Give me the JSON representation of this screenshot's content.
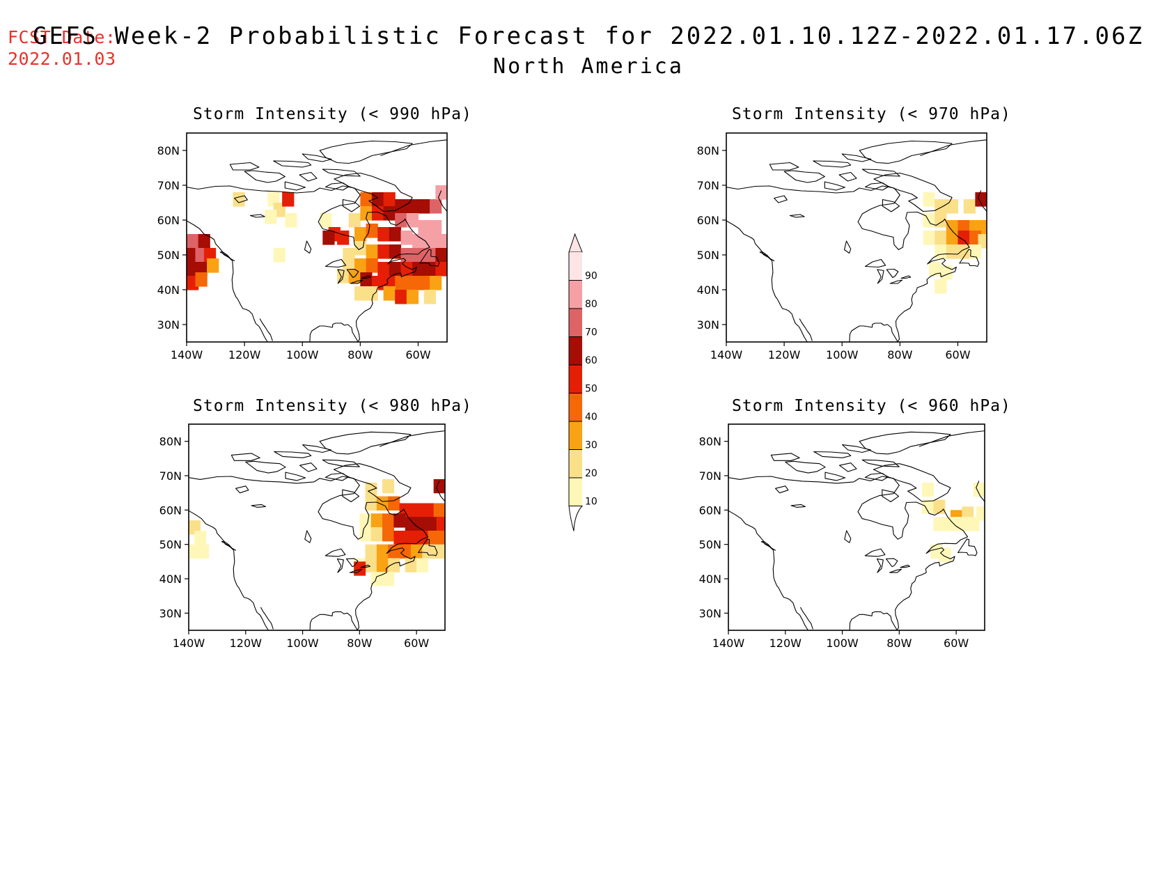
{
  "header": {
    "fcst_label": "FCST Date:",
    "fcst_date": "2022.01.03",
    "title": "GEFS Week-2 Probabilistic Forecast for 2022.01.10.12Z-2022.01.17.06Z",
    "subtitle": "North America"
  },
  "colors": {
    "fcst_text": "#e8312b",
    "scale": [
      "#fff7b8",
      "#fbe08a",
      "#f9a214",
      "#f66707",
      "#e51f05",
      "#a50d05",
      "#de6367",
      "#f5a0a5",
      "#fde5e6"
    ]
  },
  "colorbar": {
    "levels": [
      "10",
      "20",
      "30",
      "40",
      "50",
      "60",
      "70",
      "80",
      "90"
    ]
  },
  "axes": {
    "lon_ticks": [
      "140W",
      "120W",
      "100W",
      "80W",
      "60W"
    ],
    "lat_ticks": [
      "80N",
      "70N",
      "60N",
      "50N",
      "40N",
      "30N"
    ]
  },
  "panels": [
    {
      "id": "p990",
      "title": "Storm Intensity (< 990 hPa)",
      "threshold_hpa": 990
    },
    {
      "id": "p970",
      "title": "Storm Intensity (< 970 hPa)",
      "threshold_hpa": 970
    },
    {
      "id": "p980",
      "title": "Storm Intensity (< 980 hPa)",
      "threshold_hpa": 980
    },
    {
      "id": "p960",
      "title": "Storm Intensity (< 960 hPa)",
      "threshold_hpa": 960
    }
  ],
  "chart_data": {
    "type": "heatmap",
    "variable": "probability (%)",
    "x_range": [
      -140,
      -50
    ],
    "y_range": [
      25,
      85
    ],
    "levels": [
      10,
      20,
      30,
      40,
      50,
      60,
      70,
      80,
      90
    ],
    "panels": [
      {
        "id": "p990",
        "cells": [
          [
            -138,
            54,
            75
          ],
          [
            -136,
            54,
            70
          ],
          [
            -134,
            54,
            60
          ],
          [
            -138,
            50,
            65
          ],
          [
            -135,
            50,
            70
          ],
          [
            -132,
            50,
            55
          ],
          [
            -138,
            46,
            60
          ],
          [
            -135,
            46,
            65
          ],
          [
            -131,
            47,
            35
          ],
          [
            -138,
            42,
            50
          ],
          [
            -135,
            43,
            45
          ],
          [
            -122,
            66,
            20
          ],
          [
            -110,
            66,
            15
          ],
          [
            -108,
            63,
            25
          ],
          [
            -105,
            66,
            55
          ],
          [
            -111,
            61,
            15
          ],
          [
            -104,
            60,
            15
          ],
          [
            -108,
            50,
            15
          ],
          [
            -92,
            60,
            15
          ],
          [
            -89,
            56,
            55
          ],
          [
            -91,
            55,
            60
          ],
          [
            -86,
            55,
            55
          ],
          [
            -84,
            50,
            20
          ],
          [
            -82,
            60,
            25
          ],
          [
            -78,
            66,
            40
          ],
          [
            -74,
            66,
            60
          ],
          [
            -70,
            66,
            55
          ],
          [
            -66,
            64,
            60
          ],
          [
            -62,
            64,
            65
          ],
          [
            -58,
            64,
            65
          ],
          [
            -54,
            64,
            70
          ],
          [
            -52,
            68,
            80
          ],
          [
            -78,
            62,
            35
          ],
          [
            -74,
            62,
            55
          ],
          [
            -70,
            62,
            60
          ],
          [
            -66,
            60,
            70
          ],
          [
            -62,
            60,
            80
          ],
          [
            -58,
            58,
            85
          ],
          [
            -54,
            58,
            80
          ],
          [
            -80,
            56,
            30
          ],
          [
            -76,
            57,
            45
          ],
          [
            -72,
            56,
            50
          ],
          [
            -68,
            56,
            60
          ],
          [
            -64,
            55,
            80
          ],
          [
            -60,
            54,
            85
          ],
          [
            -56,
            54,
            85
          ],
          [
            -52,
            54,
            80
          ],
          [
            -80,
            52,
            25
          ],
          [
            -76,
            51,
            35
          ],
          [
            -72,
            51,
            55
          ],
          [
            -68,
            51,
            65
          ],
          [
            -64,
            50,
            75
          ],
          [
            -60,
            50,
            70
          ],
          [
            -56,
            50,
            70
          ],
          [
            -52,
            50,
            60
          ],
          [
            -84,
            48,
            20
          ],
          [
            -80,
            47,
            30
          ],
          [
            -76,
            47,
            40
          ],
          [
            -72,
            46,
            55
          ],
          [
            -68,
            46,
            60
          ],
          [
            -64,
            46,
            55
          ],
          [
            -60,
            46,
            60
          ],
          [
            -56,
            46,
            65
          ],
          [
            -52,
            46,
            55
          ],
          [
            -86,
            44,
            25
          ],
          [
            -82,
            44,
            35
          ],
          [
            -78,
            43,
            60
          ],
          [
            -74,
            42,
            55
          ],
          [
            -70,
            42,
            50
          ],
          [
            -66,
            42,
            45
          ],
          [
            -62,
            42,
            40
          ],
          [
            -58,
            42,
            40
          ],
          [
            -54,
            42,
            35
          ],
          [
            -80,
            39,
            20
          ],
          [
            -76,
            39,
            25
          ],
          [
            -70,
            39,
            35
          ],
          [
            -66,
            38,
            50
          ],
          [
            -62,
            38,
            35
          ],
          [
            -56,
            38,
            25
          ]
        ]
      },
      {
        "id": "p970",
        "cells": [
          [
            -70,
            66,
            15
          ],
          [
            -66,
            64,
            20
          ],
          [
            -62,
            64,
            20
          ],
          [
            -56,
            64,
            25
          ],
          [
            -52,
            66,
            60
          ],
          [
            -70,
            60,
            15
          ],
          [
            -66,
            60,
            25
          ],
          [
            -62,
            58,
            35
          ],
          [
            -58,
            58,
            45
          ],
          [
            -54,
            58,
            35
          ],
          [
            -51,
            58,
            30
          ],
          [
            -70,
            55,
            15
          ],
          [
            -66,
            55,
            25
          ],
          [
            -62,
            55,
            35
          ],
          [
            -58,
            55,
            50
          ],
          [
            -54,
            55,
            40
          ],
          [
            -51,
            54,
            25
          ],
          [
            -66,
            51,
            15
          ],
          [
            -62,
            51,
            20
          ],
          [
            -58,
            51,
            20
          ],
          [
            -54,
            51,
            15
          ],
          [
            -68,
            46,
            15
          ],
          [
            -64,
            45,
            15
          ],
          [
            -66,
            41,
            15
          ]
        ]
      },
      {
        "id": "p980",
        "cells": [
          [
            -138,
            55,
            20
          ],
          [
            -136,
            52,
            15
          ],
          [
            -138,
            48,
            15
          ],
          [
            -135,
            48,
            15
          ],
          [
            -76,
            66,
            25
          ],
          [
            -70,
            67,
            25
          ],
          [
            -52,
            67,
            65
          ],
          [
            -76,
            62,
            20
          ],
          [
            -72,
            62,
            35
          ],
          [
            -68,
            62,
            45
          ],
          [
            -64,
            60,
            50
          ],
          [
            -60,
            60,
            55
          ],
          [
            -56,
            60,
            50
          ],
          [
            -52,
            60,
            45
          ],
          [
            -78,
            57,
            15
          ],
          [
            -74,
            57,
            30
          ],
          [
            -70,
            57,
            45
          ],
          [
            -66,
            57,
            60
          ],
          [
            -62,
            56,
            65
          ],
          [
            -58,
            56,
            65
          ],
          [
            -54,
            56,
            60
          ],
          [
            -51,
            56,
            55
          ],
          [
            -78,
            53,
            15
          ],
          [
            -74,
            53,
            25
          ],
          [
            -70,
            53,
            40
          ],
          [
            -66,
            52,
            50
          ],
          [
            -62,
            52,
            55
          ],
          [
            -58,
            52,
            50
          ],
          [
            -54,
            52,
            45
          ],
          [
            -51,
            52,
            40
          ],
          [
            -76,
            48,
            20
          ],
          [
            -72,
            48,
            30
          ],
          [
            -68,
            48,
            40
          ],
          [
            -64,
            48,
            40
          ],
          [
            -60,
            48,
            35
          ],
          [
            -56,
            48,
            25
          ],
          [
            -52,
            48,
            20
          ],
          [
            -80,
            44,
            15
          ],
          [
            -76,
            44,
            25
          ],
          [
            -72,
            44,
            30
          ],
          [
            -68,
            44,
            25
          ],
          [
            -62,
            44,
            20
          ],
          [
            -58,
            44,
            15
          ],
          [
            -80,
            43,
            55
          ],
          [
            -74,
            40,
            15
          ],
          [
            -70,
            40,
            15
          ]
        ]
      },
      {
        "id": "p960",
        "cells": [
          [
            -70,
            66,
            15
          ],
          [
            -52,
            66,
            15
          ],
          [
            -70,
            61,
            15
          ],
          [
            -66,
            61,
            20
          ],
          [
            -60,
            58,
            35
          ],
          [
            -56,
            59,
            20
          ],
          [
            -51,
            59,
            15
          ],
          [
            -66,
            56,
            15
          ],
          [
            -62,
            56,
            15
          ],
          [
            -58,
            56,
            15
          ],
          [
            -54,
            56,
            15
          ],
          [
            -67,
            48,
            15
          ],
          [
            -64,
            47,
            15
          ]
        ]
      }
    ]
  }
}
